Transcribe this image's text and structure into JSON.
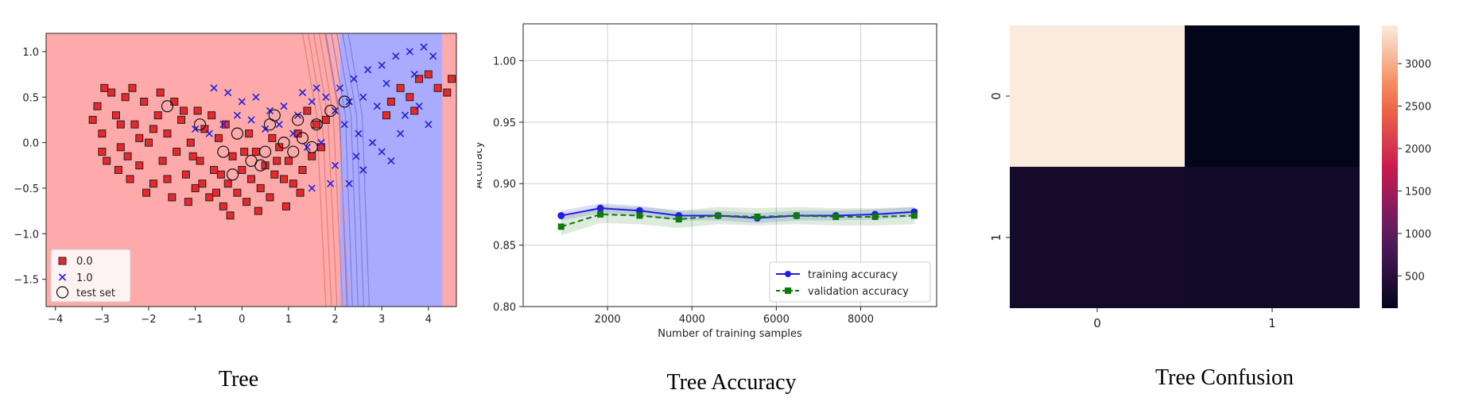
{
  "captions": {
    "tree": "Tree",
    "accuracy": "Tree Accuracy",
    "confusion": "Tree Confusion"
  },
  "chart_data": [
    {
      "type": "scatter",
      "name": "decision-region",
      "title": "Tree",
      "xlim": [
        -4.2,
        4.6
      ],
      "ylim": [
        -1.8,
        1.2
      ],
      "x_ticks": [
        "−4",
        "−3",
        "−2",
        "−1",
        "0",
        "1",
        "2",
        "3",
        "4"
      ],
      "x_tick_values": [
        -4,
        -3,
        -2,
        -1,
        0,
        1,
        2,
        3,
        4
      ],
      "y_ticks": [
        "1.0",
        "0.5",
        "0.0",
        "−0.5",
        "−1.0",
        "−1.5"
      ],
      "y_tick_values": [
        1.0,
        0.5,
        0.0,
        -0.5,
        -1.0,
        -1.5
      ],
      "regions": [
        {
          "label": "0.0",
          "x_from": -4.2,
          "x_to": 2.1,
          "color": "#ffaaaa"
        },
        {
          "label": "1.0",
          "x_from": 2.1,
          "x_to": 4.3,
          "color": "#aaaaff"
        },
        {
          "label": "0.0",
          "x_from": 4.3,
          "x_to": 4.6,
          "color": "#ffaaaa"
        }
      ],
      "class0_points": [
        [
          -3.1,
          0.4
        ],
        [
          -3.0,
          0.1
        ],
        [
          -2.9,
          -0.2
        ],
        [
          -2.8,
          0.55
        ],
        [
          -2.7,
          0.3
        ],
        [
          -2.6,
          -0.05
        ],
        [
          -2.5,
          0.5
        ],
        [
          -2.4,
          -0.4
        ],
        [
          -2.3,
          0.2
        ],
        [
          -2.2,
          -0.25
        ],
        [
          -2.1,
          0.45
        ],
        [
          -2.0,
          0.0
        ],
        [
          -1.9,
          -0.45
        ],
        [
          -1.8,
          0.3
        ],
        [
          -1.7,
          -0.2
        ],
        [
          -1.6,
          0.1
        ],
        [
          -1.5,
          -0.6
        ],
        [
          -1.4,
          -0.1
        ],
        [
          -1.3,
          0.25
        ],
        [
          -1.2,
          -0.35
        ],
        [
          -1.1,
          0.0
        ],
        [
          -1.0,
          -0.5
        ],
        [
          -0.9,
          -0.2
        ],
        [
          -0.8,
          0.15
        ],
        [
          -0.7,
          -0.6
        ],
        [
          -0.6,
          -0.3
        ],
        [
          -0.5,
          0.05
        ],
        [
          -0.4,
          -0.7
        ],
        [
          -0.3,
          -0.45
        ],
        [
          -0.2,
          -0.15
        ],
        [
          -0.1,
          -0.55
        ],
        [
          0.0,
          -0.3
        ],
        [
          0.1,
          -0.65
        ],
        [
          0.2,
          -0.4
        ],
        [
          0.3,
          -0.1
        ],
        [
          0.4,
          -0.5
        ],
        [
          0.5,
          -0.25
        ],
        [
          0.6,
          -0.6
        ],
        [
          0.7,
          -0.35
        ],
        [
          0.8,
          -0.05
        ],
        [
          0.9,
          -0.4
        ],
        [
          1.0,
          -0.2
        ],
        [
          1.1,
          -0.45
        ],
        [
          1.2,
          0.1
        ],
        [
          1.3,
          -0.3
        ],
        [
          1.4,
          0.35
        ],
        [
          1.5,
          -0.15
        ],
        [
          1.6,
          0.2
        ],
        [
          1.7,
          -0.05
        ],
        [
          1.8,
          0.25
        ],
        [
          -3.2,
          0.25
        ],
        [
          -2.95,
          0.6
        ],
        [
          -2.65,
          -0.3
        ],
        [
          -2.35,
          0.6
        ],
        [
          -2.05,
          -0.55
        ],
        [
          -1.75,
          0.55
        ],
        [
          -1.45,
          0.45
        ],
        [
          -1.15,
          -0.65
        ],
        [
          -0.85,
          -0.45
        ],
        [
          -0.55,
          -0.55
        ],
        [
          -0.25,
          -0.8
        ],
        [
          0.05,
          -0.1
        ],
        [
          0.35,
          -0.75
        ],
        [
          0.65,
          0.05
        ],
        [
          0.95,
          -0.7
        ],
        [
          -1.9,
          0.15
        ],
        [
          -1.6,
          -0.4
        ],
        [
          -2.6,
          0.2
        ],
        [
          -3.0,
          -0.1
        ],
        [
          -2.2,
          0.05
        ],
        [
          3.2,
          0.45
        ],
        [
          3.4,
          0.6
        ],
        [
          3.6,
          0.5
        ],
        [
          3.8,
          0.7
        ],
        [
          4.0,
          0.75
        ],
        [
          4.2,
          0.6
        ],
        [
          4.4,
          0.55
        ],
        [
          4.5,
          0.7
        ],
        [
          3.1,
          0.3
        ],
        [
          3.7,
          0.35
        ],
        [
          -0.95,
          0.35
        ],
        [
          -0.65,
          0.3
        ],
        [
          -1.25,
          0.35
        ],
        [
          -0.35,
          0.2
        ],
        [
          0.15,
          0.1
        ],
        [
          -2.45,
          -0.15
        ],
        [
          -1.05,
          -0.15
        ],
        [
          -0.45,
          -0.35
        ],
        [
          0.75,
          -0.2
        ],
        [
          1.25,
          -0.55
        ]
      ],
      "class1_points": [
        [
          -0.6,
          0.6
        ],
        [
          -0.3,
          0.55
        ],
        [
          0.0,
          0.45
        ],
        [
          0.3,
          0.5
        ],
        [
          0.6,
          0.35
        ],
        [
          0.9,
          0.4
        ],
        [
          1.2,
          0.3
        ],
        [
          1.5,
          0.45
        ],
        [
          1.8,
          0.5
        ],
        [
          2.1,
          0.6
        ],
        [
          2.4,
          0.7
        ],
        [
          2.7,
          0.8
        ],
        [
          3.0,
          0.85
        ],
        [
          3.3,
          0.95
        ],
        [
          3.6,
          1.0
        ],
        [
          3.9,
          1.05
        ],
        [
          4.1,
          0.95
        ],
        [
          2.2,
          0.2
        ],
        [
          2.5,
          0.1
        ],
        [
          2.8,
          0.0
        ],
        [
          3.0,
          -0.1
        ],
        [
          3.2,
          -0.2
        ],
        [
          2.6,
          -0.3
        ],
        [
          2.3,
          -0.45
        ],
        [
          2.0,
          -0.25
        ],
        [
          1.7,
          0.0
        ],
        [
          1.4,
          -0.05
        ],
        [
          1.1,
          0.1
        ],
        [
          0.8,
          0.2
        ],
        [
          0.5,
          0.15
        ],
        [
          0.2,
          0.25
        ],
        [
          -0.1,
          0.3
        ],
        [
          -0.4,
          0.2
        ],
        [
          -0.7,
          0.1
        ],
        [
          -1.0,
          0.15
        ],
        [
          3.5,
          0.3
        ],
        [
          3.8,
          0.4
        ],
        [
          4.0,
          0.2
        ],
        [
          3.4,
          0.1
        ],
        [
          2.9,
          0.4
        ],
        [
          2.6,
          0.5
        ],
        [
          2.3,
          0.45
        ],
        [
          2.0,
          0.35
        ],
        [
          1.6,
          0.6
        ],
        [
          1.3,
          0.55
        ],
        [
          3.1,
          0.65
        ],
        [
          3.7,
          0.75
        ],
        [
          2.45,
          -0.15
        ],
        [
          1.9,
          -0.45
        ],
        [
          1.5,
          -0.5
        ]
      ],
      "test_points": [
        [
          -1.6,
          0.4
        ],
        [
          -0.9,
          0.2
        ],
        [
          -0.4,
          -0.1
        ],
        [
          0.2,
          -0.2
        ],
        [
          0.6,
          0.2
        ],
        [
          0.9,
          0.0
        ],
        [
          1.1,
          -0.1
        ],
        [
          1.3,
          0.05
        ],
        [
          1.5,
          -0.05
        ],
        [
          1.6,
          0.2
        ],
        [
          0.4,
          -0.25
        ],
        [
          -0.2,
          -0.35
        ],
        [
          1.9,
          0.35
        ],
        [
          2.2,
          0.45
        ],
        [
          0.7,
          0.3
        ],
        [
          -0.1,
          0.1
        ],
        [
          1.2,
          0.25
        ],
        [
          0.5,
          -0.1
        ]
      ],
      "legend": {
        "items": [
          "0.0",
          "1.0",
          "test set"
        ],
        "position": "lower-left"
      },
      "colors": {
        "class0": "#e8282b",
        "class1": "#1f1fe0",
        "edge": "#222222"
      }
    },
    {
      "type": "line",
      "name": "learning-curve",
      "title": "Tree Accuracy",
      "xlabel": "Number of training samples",
      "ylabel": "Accuracy",
      "xlim": [
        0,
        9800
      ],
      "ylim": [
        0.8,
        1.03
      ],
      "x_ticks": [
        "2000",
        "4000",
        "6000",
        "8000"
      ],
      "x_tick_values": [
        2000,
        4000,
        6000,
        8000
      ],
      "y_ticks": [
        "1.00",
        "0.95",
        "0.90",
        "0.85",
        "0.80"
      ],
      "y_tick_values": [
        1.0,
        0.95,
        0.9,
        0.85,
        0.8
      ],
      "x": [
        900,
        1830,
        2760,
        3690,
        4620,
        5550,
        6480,
        7410,
        8340,
        9270
      ],
      "series": [
        {
          "name": "training accuracy",
          "values": [
            0.874,
            0.88,
            0.878,
            0.874,
            0.874,
            0.872,
            0.874,
            0.874,
            0.875,
            0.877
          ],
          "band": 0.004,
          "color": "#1f1fe0"
        },
        {
          "name": "validation accuracy",
          "values": [
            0.865,
            0.875,
            0.874,
            0.871,
            0.874,
            0.873,
            0.874,
            0.873,
            0.873,
            0.874
          ],
          "band": 0.007,
          "color": "#117711"
        }
      ],
      "legend": {
        "items": [
          "training accuracy",
          "validation accuracy"
        ],
        "position": "lower-right"
      },
      "grid": true
    },
    {
      "type": "heatmap",
      "name": "confusion-matrix",
      "title": "Tree Confusion",
      "x_ticks": [
        "0",
        "1"
      ],
      "y_ticks": [
        "0",
        "1"
      ],
      "matrix": [
        [
          3450,
          120
        ],
        [
          300,
          270
        ]
      ],
      "colorbar_ticks": [
        "3000",
        "2500",
        "2000",
        "1500",
        "1000",
        "500"
      ],
      "colorbar_tick_values": [
        3000,
        2500,
        2000,
        1500,
        1000,
        500
      ],
      "vmin": 120,
      "vmax": 3450
    }
  ]
}
